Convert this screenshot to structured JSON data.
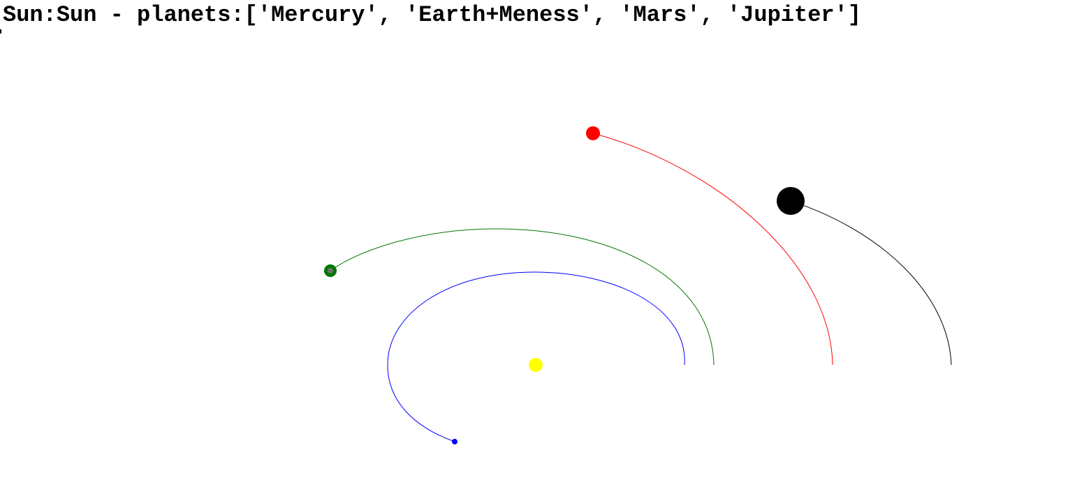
{
  "window": {
    "title": "Sun:Sun - planets:['Mercury', 'Earth+Meness', 'Mars', 'Jupiter']"
  },
  "colors": {
    "background": "#ffffff",
    "sun": "#ffff00",
    "mercury": "#0000ff",
    "earth": "#007700",
    "mars": "#ff0000",
    "jupiter": "#000000"
  },
  "bodies": [
    {
      "name": "Sun",
      "color": "#ffff00"
    },
    {
      "name": "Mercury",
      "color": "#0000ff"
    },
    {
      "name": "Earth+Meness",
      "color": "#007700"
    },
    {
      "name": "Mars",
      "color": "#ff0000"
    },
    {
      "name": "Jupiter",
      "color": "#000000"
    }
  ]
}
